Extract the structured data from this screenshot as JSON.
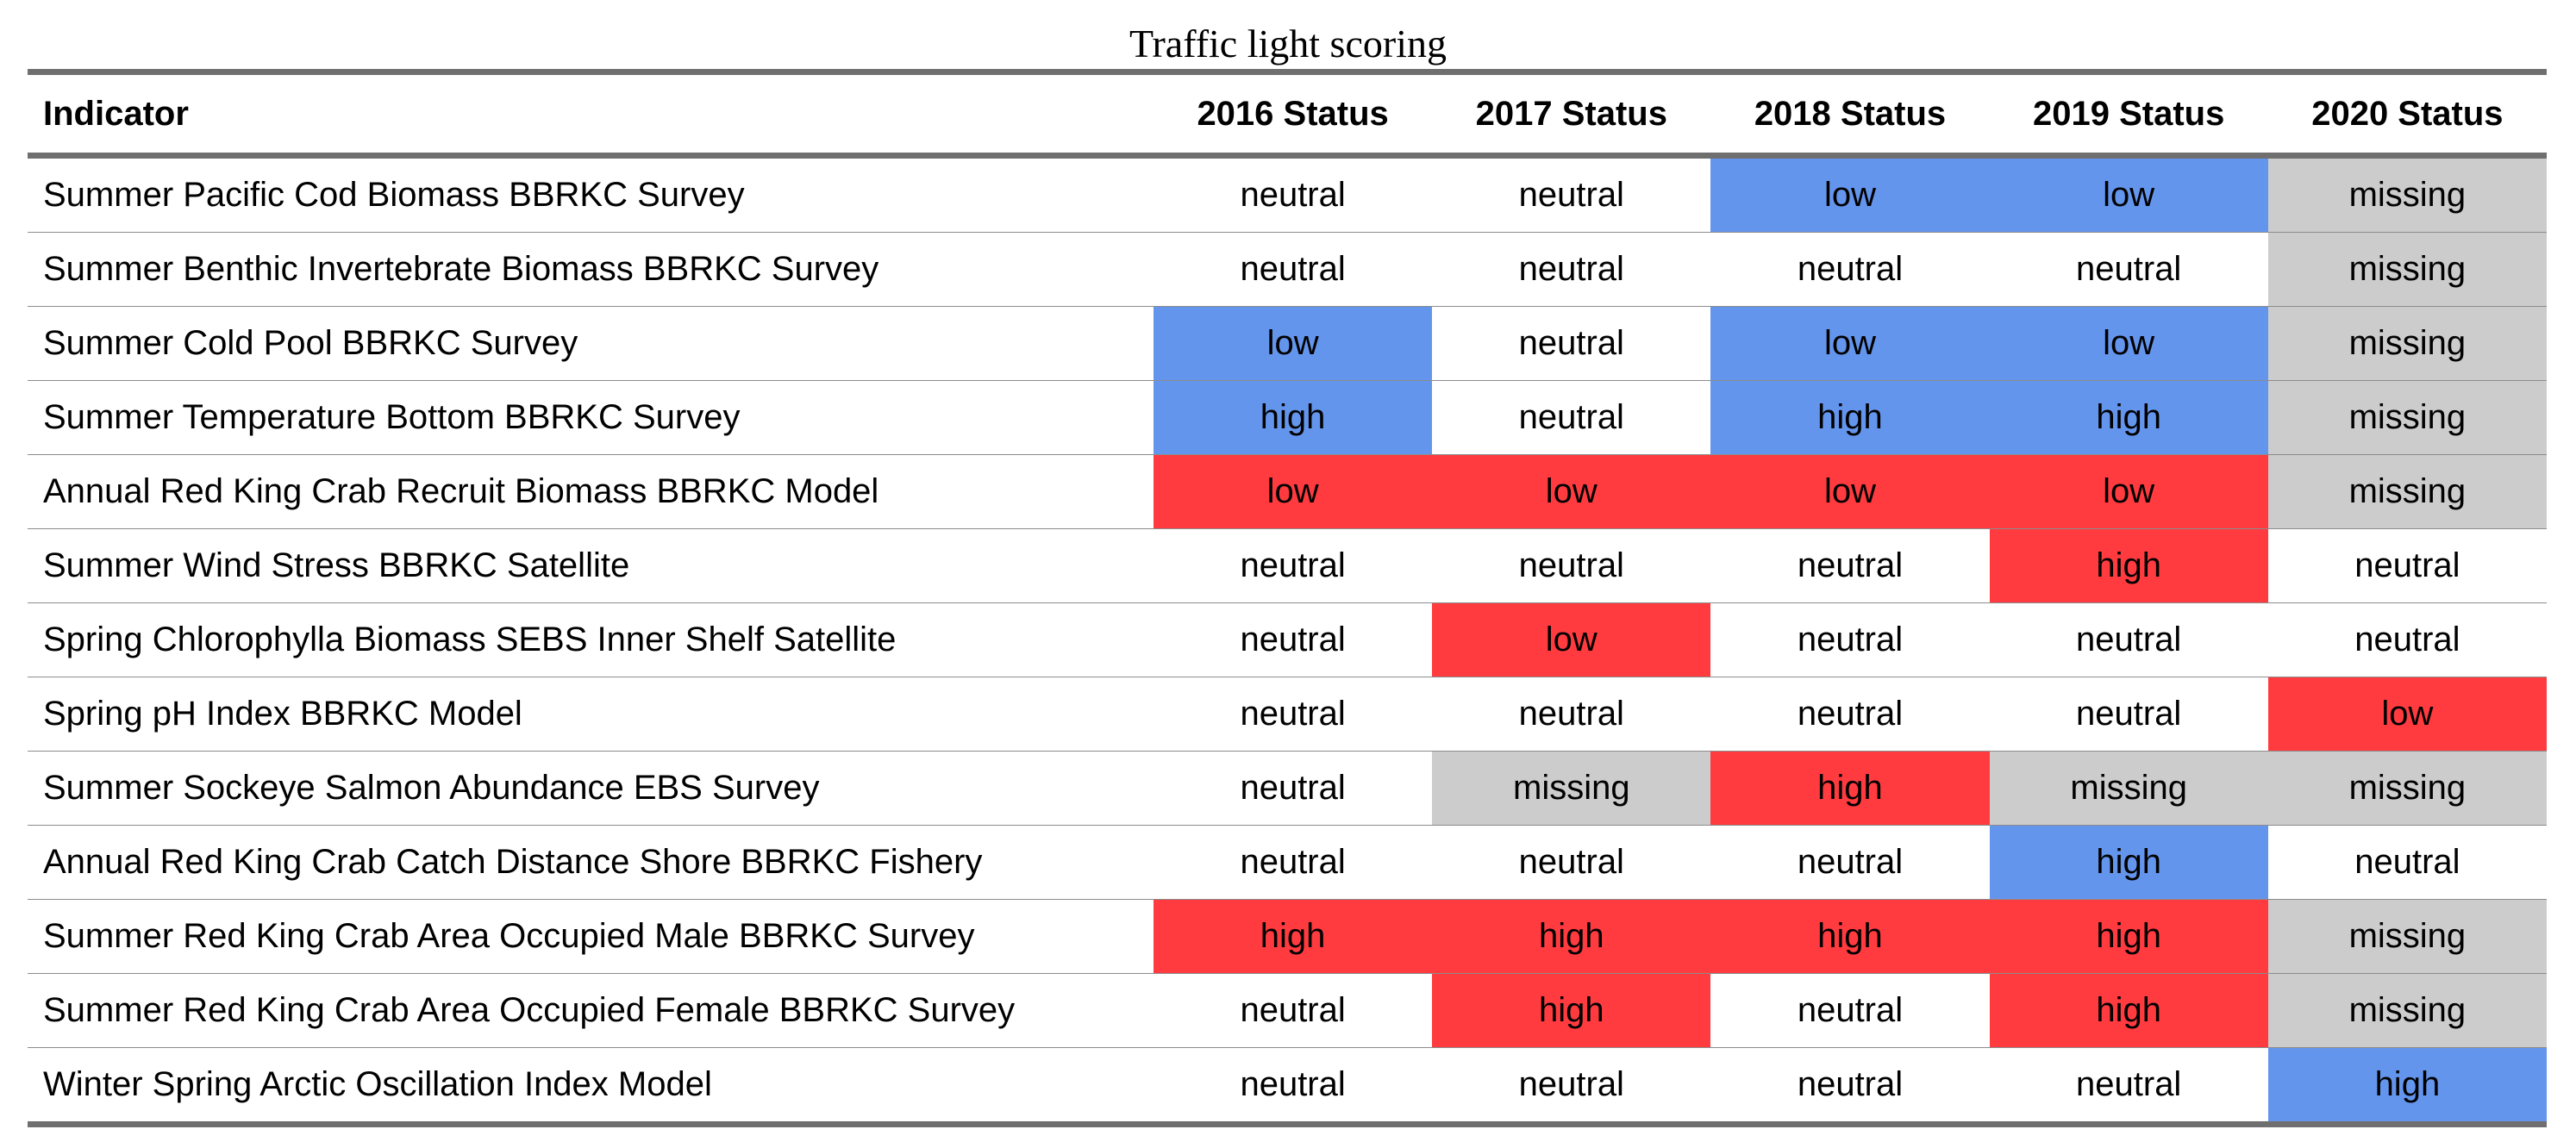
{
  "caption": "Traffic light scoring",
  "colors": {
    "blue": "#6495ed",
    "red": "#ff3b3f",
    "gray": "#cccccc",
    "none": "#ffffff"
  },
  "columns": [
    "Indicator",
    "2016 Status",
    "2017 Status",
    "2018 Status",
    "2019 Status",
    "2020 Status"
  ],
  "rows": [
    {
      "indicator": "Summer Pacific Cod Biomass BBRKC Survey",
      "cells": [
        {
          "text": "neutral",
          "color": "none"
        },
        {
          "text": "neutral",
          "color": "none"
        },
        {
          "text": "low",
          "color": "blue"
        },
        {
          "text": "low",
          "color": "blue"
        },
        {
          "text": "missing",
          "color": "gray"
        }
      ]
    },
    {
      "indicator": "Summer Benthic Invertebrate Biomass BBRKC Survey",
      "cells": [
        {
          "text": "neutral",
          "color": "none"
        },
        {
          "text": "neutral",
          "color": "none"
        },
        {
          "text": "neutral",
          "color": "none"
        },
        {
          "text": "neutral",
          "color": "none"
        },
        {
          "text": "missing",
          "color": "gray"
        }
      ]
    },
    {
      "indicator": "Summer Cold Pool BBRKC Survey",
      "cells": [
        {
          "text": "low",
          "color": "blue"
        },
        {
          "text": "neutral",
          "color": "none"
        },
        {
          "text": "low",
          "color": "blue"
        },
        {
          "text": "low",
          "color": "blue"
        },
        {
          "text": "missing",
          "color": "gray"
        }
      ]
    },
    {
      "indicator": "Summer Temperature Bottom BBRKC Survey",
      "cells": [
        {
          "text": "high",
          "color": "blue"
        },
        {
          "text": "neutral",
          "color": "none"
        },
        {
          "text": "high",
          "color": "blue"
        },
        {
          "text": "high",
          "color": "blue"
        },
        {
          "text": "missing",
          "color": "gray"
        }
      ]
    },
    {
      "indicator": "Annual Red King Crab Recruit Biomass BBRKC Model",
      "cells": [
        {
          "text": "low",
          "color": "red"
        },
        {
          "text": "low",
          "color": "red"
        },
        {
          "text": "low",
          "color": "red"
        },
        {
          "text": "low",
          "color": "red"
        },
        {
          "text": "missing",
          "color": "gray"
        }
      ]
    },
    {
      "indicator": "Summer Wind Stress BBRKC Satellite",
      "cells": [
        {
          "text": "neutral",
          "color": "none"
        },
        {
          "text": "neutral",
          "color": "none"
        },
        {
          "text": "neutral",
          "color": "none"
        },
        {
          "text": "high",
          "color": "red"
        },
        {
          "text": "neutral",
          "color": "none"
        }
      ]
    },
    {
      "indicator": "Spring Chlorophylla Biomass SEBS Inner Shelf Satellite",
      "cells": [
        {
          "text": "neutral",
          "color": "none"
        },
        {
          "text": "low",
          "color": "red"
        },
        {
          "text": "neutral",
          "color": "none"
        },
        {
          "text": "neutral",
          "color": "none"
        },
        {
          "text": "neutral",
          "color": "none"
        }
      ]
    },
    {
      "indicator": "Spring pH Index BBRKC Model",
      "cells": [
        {
          "text": "neutral",
          "color": "none"
        },
        {
          "text": "neutral",
          "color": "none"
        },
        {
          "text": "neutral",
          "color": "none"
        },
        {
          "text": "neutral",
          "color": "none"
        },
        {
          "text": "low",
          "color": "red"
        }
      ]
    },
    {
      "indicator": "Summer Sockeye Salmon Abundance EBS Survey",
      "cells": [
        {
          "text": "neutral",
          "color": "none"
        },
        {
          "text": "missing",
          "color": "gray"
        },
        {
          "text": "high",
          "color": "red"
        },
        {
          "text": "missing",
          "color": "gray"
        },
        {
          "text": "missing",
          "color": "gray"
        }
      ]
    },
    {
      "indicator": "Annual Red King Crab Catch Distance Shore BBRKC Fishery",
      "cells": [
        {
          "text": "neutral",
          "color": "none"
        },
        {
          "text": "neutral",
          "color": "none"
        },
        {
          "text": "neutral",
          "color": "none"
        },
        {
          "text": "high",
          "color": "blue"
        },
        {
          "text": "neutral",
          "color": "none"
        }
      ]
    },
    {
      "indicator": "Summer Red King Crab Area Occupied Male BBRKC Survey",
      "cells": [
        {
          "text": "high",
          "color": "red"
        },
        {
          "text": "high",
          "color": "red"
        },
        {
          "text": "high",
          "color": "red"
        },
        {
          "text": "high",
          "color": "red"
        },
        {
          "text": "missing",
          "color": "gray"
        }
      ]
    },
    {
      "indicator": "Summer Red King Crab Area Occupied Female BBRKC Survey",
      "cells": [
        {
          "text": "neutral",
          "color": "none"
        },
        {
          "text": "high",
          "color": "red"
        },
        {
          "text": "neutral",
          "color": "none"
        },
        {
          "text": "high",
          "color": "red"
        },
        {
          "text": "missing",
          "color": "gray"
        }
      ]
    },
    {
      "indicator": "Winter Spring Arctic Oscillation Index Model",
      "cells": [
        {
          "text": "neutral",
          "color": "none"
        },
        {
          "text": "neutral",
          "color": "none"
        },
        {
          "text": "neutral",
          "color": "none"
        },
        {
          "text": "neutral",
          "color": "none"
        },
        {
          "text": "high",
          "color": "blue"
        }
      ]
    }
  ]
}
